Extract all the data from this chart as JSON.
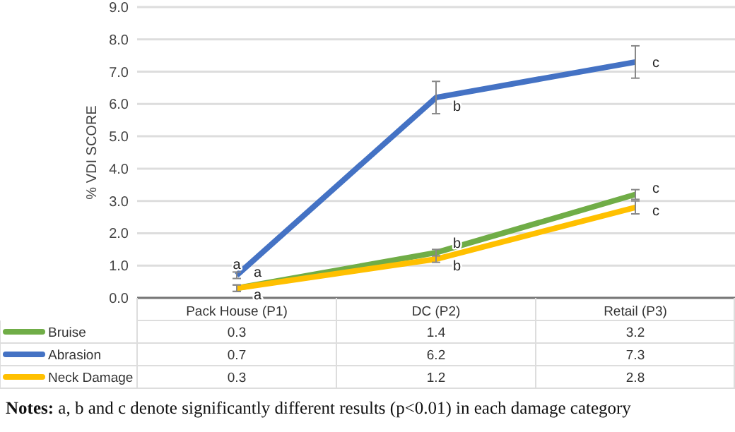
{
  "chart_data": {
    "type": "line",
    "ylabel": "% VDI SCORE",
    "categories": [
      "Pack House (P1)",
      "DC (P2)",
      "Retail (P3)"
    ],
    "series": [
      {
        "name": "Bruise",
        "color": "#70ad47",
        "values": [
          0.3,
          1.4,
          3.2
        ],
        "errors": [
          0.1,
          0.1,
          0.15
        ]
      },
      {
        "name": "Abrasion",
        "color": "#4472c4",
        "values": [
          0.7,
          6.2,
          7.3
        ],
        "errors": [
          0.1,
          0.5,
          0.5
        ]
      },
      {
        "name": "Neck Damage",
        "color": "#ffc000",
        "values": [
          0.3,
          1.2,
          2.8
        ],
        "errors": [
          0.1,
          0.1,
          0.2
        ]
      }
    ],
    "ylim": [
      0,
      9
    ],
    "yticks": [
      {
        "value": 0,
        "label": "0.0"
      },
      {
        "value": 1,
        "label": "1.0"
      },
      {
        "value": 2,
        "label": "2.0"
      },
      {
        "value": 3,
        "label": "3.0"
      },
      {
        "value": 4,
        "label": "4.0"
      },
      {
        "value": 5,
        "label": "5.0"
      },
      {
        "value": 6,
        "label": "6.0"
      },
      {
        "value": 7,
        "label": "7.0"
      },
      {
        "value": 8,
        "label": "8.0"
      },
      {
        "value": 9,
        "label": "9.0"
      }
    ],
    "grid": "y",
    "legend": "bottom",
    "data_labels": true,
    "marker": "none",
    "line_style": "solid",
    "annotations": [
      {
        "text": "a",
        "x": "Pack House (P1)",
        "y": 1.05
      },
      {
        "text": "a",
        "x": "Pack House (P1)",
        "y": 0.8
      },
      {
        "text": "a",
        "x": "Pack House (P1)",
        "y": 0.1
      },
      {
        "text": "b",
        "x": "DC (P2)",
        "y": 5.95
      },
      {
        "text": "b",
        "x": "DC (P2)",
        "y": 1.7
      },
      {
        "text": "b",
        "x": "DC (P2)",
        "y": 1.0
      },
      {
        "text": "c",
        "x": "Retail (P3)",
        "y": 7.3
      },
      {
        "text": "c",
        "x": "Retail (P3)",
        "y": 3.4
      },
      {
        "text": "c",
        "x": "Retail (P3)",
        "y": 2.7
      },
      "Notes: a, b and c denote significantly different results (p<0.01) in each damage category"
    ]
  }
}
